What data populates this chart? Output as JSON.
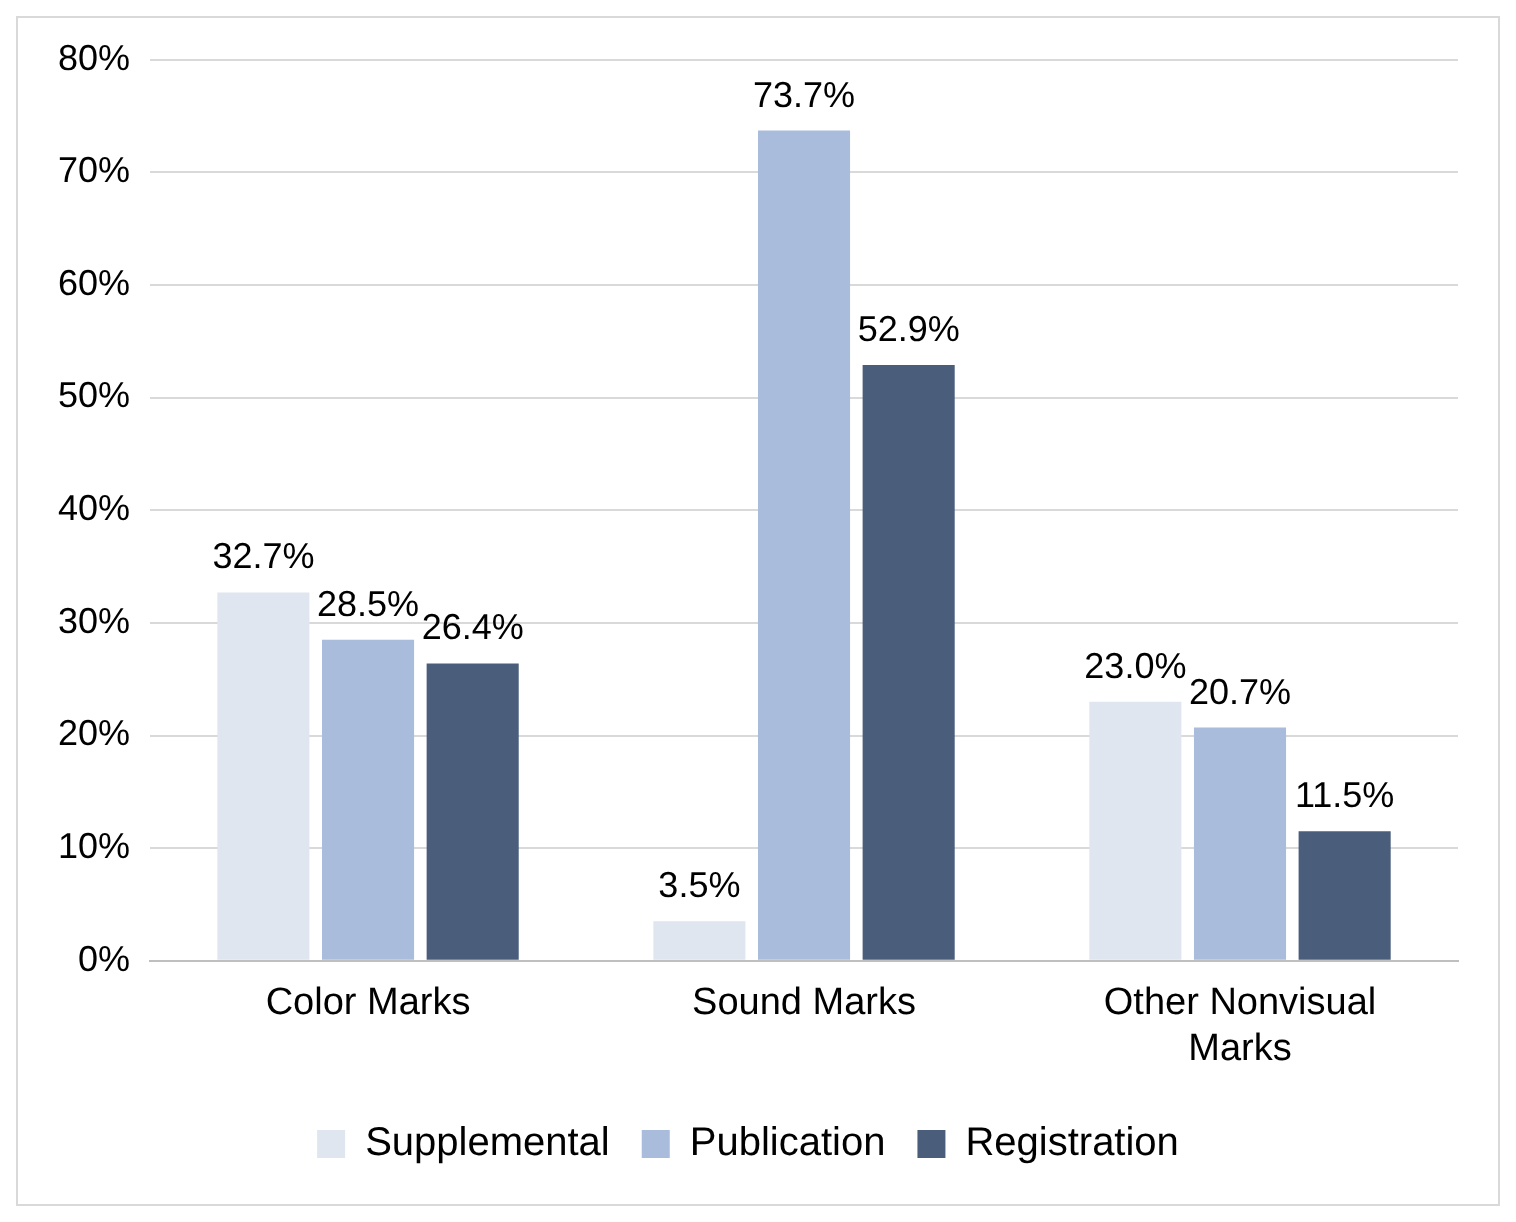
{
  "chart_data": {
    "type": "bar",
    "categories": [
      "Color Marks",
      "Sound Marks",
      "Other Nonvisual Marks"
    ],
    "series": [
      {
        "name": "Supplemental",
        "color": "#dfe6f0",
        "values": [
          32.7,
          3.5,
          23.0
        ],
        "value_labels": [
          "32.7%",
          "3.5%",
          "23.0%"
        ]
      },
      {
        "name": "Publication",
        "color": "#a9bcdb",
        "values": [
          28.5,
          73.7,
          20.7
        ],
        "value_labels": [
          "28.5%",
          "73.7%",
          "20.7%"
        ]
      },
      {
        "name": "Registration",
        "color": "#4a5e7c",
        "values": [
          26.4,
          52.9,
          11.5
        ],
        "value_labels": [
          "26.4%",
          "52.9%",
          "11.5%"
        ]
      }
    ],
    "ylim": [
      0,
      80
    ],
    "yticks": [
      {
        "value": 0,
        "label": "0%"
      },
      {
        "value": 10,
        "label": "10%"
      },
      {
        "value": 20,
        "label": "20%"
      },
      {
        "value": 30,
        "label": "30%"
      },
      {
        "value": 40,
        "label": "40%"
      },
      {
        "value": 50,
        "label": "50%"
      },
      {
        "value": 60,
        "label": "60%"
      },
      {
        "value": 70,
        "label": "70%"
      },
      {
        "value": 80,
        "label": "80%"
      }
    ],
    "grid": "y",
    "legend": "bottom"
  }
}
